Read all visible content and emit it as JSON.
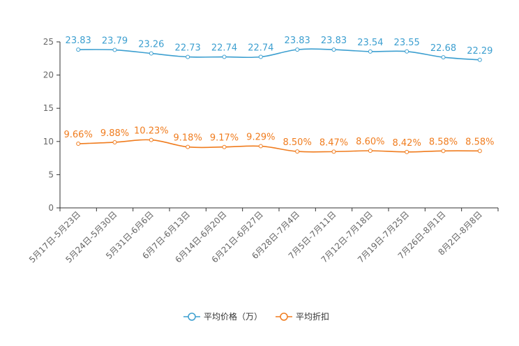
{
  "chart_data": {
    "type": "line",
    "title": "",
    "xlabel": "",
    "ylabel": "",
    "ylim": [
      0,
      25
    ],
    "yticks": [
      0,
      5,
      10,
      15,
      20,
      25
    ],
    "grid": false,
    "legend_position": "bottom",
    "categories": [
      "5月17日-5月23日",
      "5月24日-5月30日",
      "5月31日-6月6日",
      "6月7日-6月13日",
      "6月14日-6月20日",
      "6月21日-6月27日",
      "6月28日-7月4日",
      "7月5日-7月11日",
      "7月12日-7月18日",
      "7月19日-7月25日",
      "7月26日-8月1日",
      "8月2日-8月8日"
    ],
    "series": [
      {
        "name": "平均价格（万）",
        "color": "#3c9fd0",
        "values": [
          23.83,
          23.79,
          23.26,
          22.73,
          22.74,
          22.74,
          23.83,
          23.83,
          23.54,
          23.55,
          22.68,
          22.29
        ],
        "labels": [
          "23.83",
          "23.79",
          "23.26",
          "22.73",
          "22.74",
          "22.74",
          "23.83",
          "23.83",
          "23.54",
          "23.55",
          "22.68",
          "22.29"
        ]
      },
      {
        "name": "平均折扣",
        "color": "#f07c1e",
        "values": [
          9.66,
          9.88,
          10.23,
          9.18,
          9.17,
          9.29,
          8.5,
          8.47,
          8.6,
          8.42,
          8.58,
          8.58
        ],
        "labels": [
          "9.66%",
          "9.88%",
          "10.23%",
          "9.18%",
          "9.17%",
          "9.29%",
          "8.50%",
          "8.47%",
          "8.60%",
          "8.42%",
          "8.58%",
          "8.58%"
        ]
      }
    ]
  }
}
